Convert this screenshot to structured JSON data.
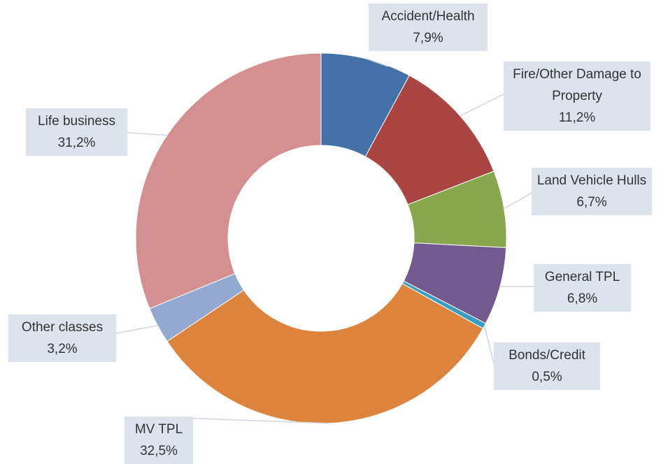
{
  "chart_data": {
    "type": "donut",
    "categories": [
      "Accident/Health",
      "Fire/Other Damage to Property",
      "Land Vehicle Hulls",
      "General TPL",
      "Bonds/Credit",
      "MV TPL",
      "Other classes",
      "Life business"
    ],
    "values": [
      7.9,
      11.2,
      6.7,
      6.8,
      0.5,
      32.5,
      3.2,
      31.2
    ],
    "value_labels": [
      "7,9%",
      "11,2%",
      "6,7%",
      "6,8%",
      "0,5%",
      "32,5%",
      "3,2%",
      "31,2%"
    ],
    "colors": [
      "#4472a8",
      "#a94543",
      "#8aa64e",
      "#735a8e",
      "#3b9dc0",
      "#dc843d",
      "#93a9d2",
      "#d49090"
    ]
  }
}
